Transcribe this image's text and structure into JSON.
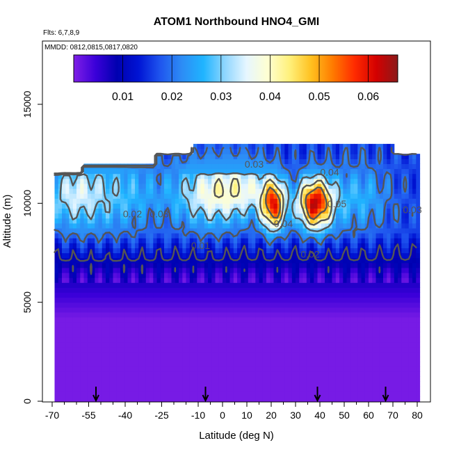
{
  "chart_data": {
    "type": "heatmap",
    "title": "ATOM1 Northbound HNO4_GMI",
    "flights_note": "Flts: 6,7,8,9",
    "dates_note": "MMDD: 0812,0815,0817,0820",
    "xlabel": "Latitude (deg N)",
    "ylabel": "Altitude (m)",
    "xlim": [
      -70,
      85
    ],
    "ylim": [
      0,
      18000
    ],
    "x_ticks": [
      "-70",
      "-55",
      "-40",
      "-25",
      "-10",
      "0",
      "10",
      "20",
      "30",
      "40",
      "50",
      "60",
      "70",
      "80"
    ],
    "x_tick_values": [
      -70,
      -55,
      -40,
      -25,
      -10,
      0,
      10,
      20,
      30,
      40,
      50,
      60,
      70,
      80
    ],
    "y_ticks": [
      "0",
      "5000",
      "10000",
      "15000"
    ],
    "y_tick_values": [
      0,
      5000,
      10000,
      15000
    ],
    "colorbar": {
      "range": [
        0,
        0.066
      ],
      "ticks": [
        "0.01",
        "0.02",
        "0.03",
        "0.04",
        "0.05",
        "0.06"
      ],
      "tick_values": [
        0.01,
        0.02,
        0.03,
        0.04,
        0.05,
        0.06
      ],
      "colors": [
        "#7f1fe6",
        "#3b00d9",
        "#0000b0",
        "#0014d4",
        "#1f55ee",
        "#2d8cf5",
        "#1fb4ff",
        "#8fd6ff",
        "#e6f6ff",
        "#ffffd0",
        "#fff07a",
        "#ffc01f",
        "#ff7a00",
        "#ff2b00",
        "#d40000",
        "#8b1a1a"
      ]
    },
    "contours": [
      {
        "level": "0.01",
        "x": -9,
        "y": 7700
      },
      {
        "level": "0.02",
        "x": 36,
        "y": 7250
      },
      {
        "level": "0.02",
        "x": -37,
        "y": 9300
      },
      {
        "level": "0.03",
        "x": -26,
        "y": 9300
      },
      {
        "level": "0.03",
        "x": 13,
        "y": 11800
      },
      {
        "level": "0.03",
        "x": 78,
        "y": 9500
      },
      {
        "level": "0.04",
        "x": 44,
        "y": 11400
      },
      {
        "level": "0.04",
        "x": 25,
        "y": 8800
      },
      {
        "level": "0.05",
        "x": 47,
        "y": 9800
      }
    ],
    "flight_markers_lat": [
      -52,
      -7,
      39,
      67
    ]
  }
}
